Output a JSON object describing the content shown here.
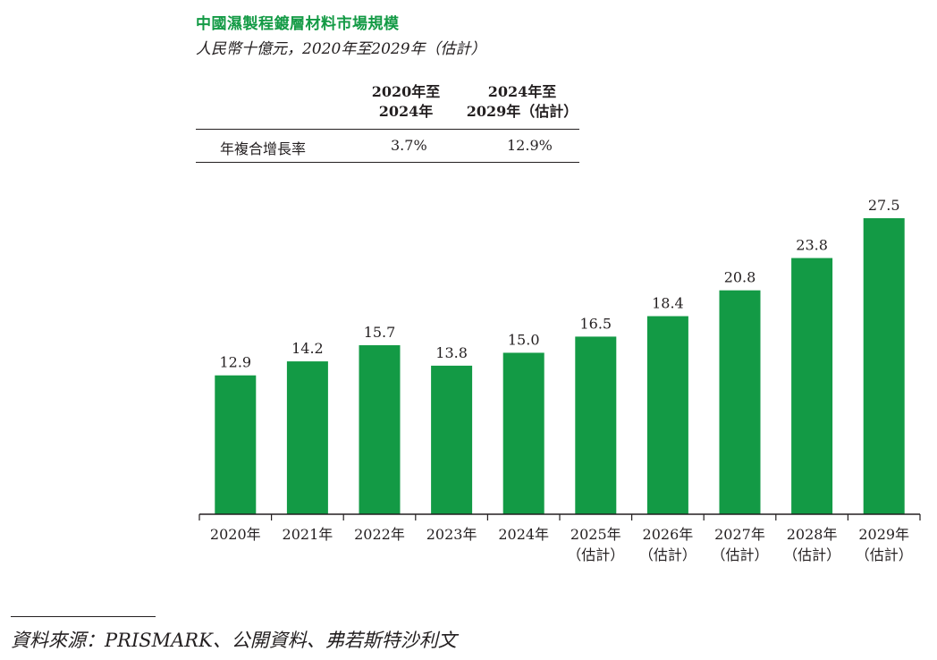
{
  "title": "中國濕製程鍍層材料市場規模",
  "subtitle": "人民幣十億元，2020年至2029年（估計）",
  "cagr": {
    "col1_header_line1": "2020年至",
    "col1_header_line2": "2024年",
    "col2_header_line1": "2024年至",
    "col2_header_line2": "2029年（估計）",
    "row_label": "年複合增長率",
    "col1_value": "3.7%",
    "col2_value": "12.9%"
  },
  "chart_data": {
    "type": "bar",
    "title": "中國濕製程鍍層材料市場規模",
    "ylabel": "人民幣十億元",
    "xlabel": "",
    "categories": [
      [
        "2020年"
      ],
      [
        "2021年"
      ],
      [
        "2022年"
      ],
      [
        "2023年"
      ],
      [
        "2024年"
      ],
      [
        "2025年",
        "（估計）"
      ],
      [
        "2026年",
        "（估計）"
      ],
      [
        "2027年",
        "（估計）"
      ],
      [
        "2028年",
        "（估計）"
      ],
      [
        "2029年",
        "（估計）"
      ]
    ],
    "values": [
      12.9,
      14.2,
      15.7,
      13.8,
      15.0,
      16.5,
      18.4,
      20.8,
      23.8,
      27.5
    ],
    "ylim": [
      0,
      27.5
    ],
    "bar_color": "#139a45",
    "grid": false
  },
  "source": {
    "label": "資料來源：",
    "text": "PRISMARK、公開資料、弗若斯特沙利文"
  }
}
